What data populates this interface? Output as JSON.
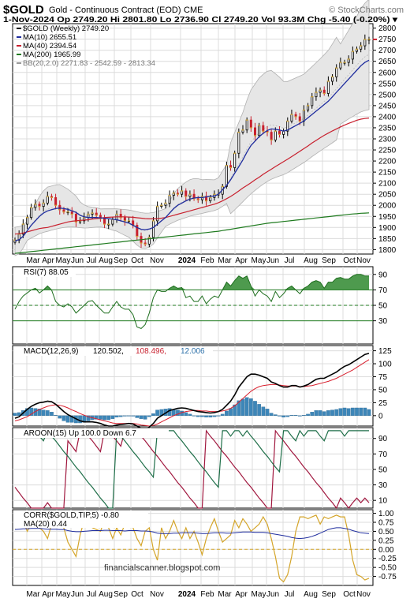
{
  "header": {
    "symbol": "$GOLD",
    "name": "Gold - Continuous Contract (EOD)",
    "exchange": "CME",
    "watermark": "© StockCharts.com",
    "quote_line": "1-Nov-2024   Op 2749.20   Hi 2801.80   Lo 2736.90   Cl 2749.20   Vol 93.3M   Chg -5.40 (-0.20%) ▾"
  },
  "footer": {
    "credit": "financialscanner.blogspot.com"
  },
  "chart_data": [
    {
      "type": "candlestick",
      "panel": "price",
      "legend": [
        {
          "label": "$GOLD (Weekly) 2749.20",
          "color": "#000000"
        },
        {
          "label": "MA(10) 2655.51",
          "color": "#1f2d9e"
        },
        {
          "label": "MA(40) 2394.54",
          "color": "#c8202e"
        },
        {
          "label": "MA(200) 1965.99",
          "color": "#1e7a1e"
        },
        {
          "label": "BB(20,2.0) 2271.83 - 2542.59 - 2813.34",
          "color": "#999999"
        }
      ],
      "yticks": [
        1800,
        1850,
        1900,
        1950,
        2000,
        2050,
        2100,
        2150,
        2200,
        2250,
        2300,
        2350,
        2400,
        2450,
        2500,
        2550,
        2600,
        2650,
        2700,
        2750,
        2800
      ],
      "ylim": [
        1780,
        2820
      ],
      "x_labels": [
        "Mar",
        "Apr",
        "May",
        "Jun",
        "Jul",
        "Aug",
        "Sep",
        "Oct",
        "Nov",
        "2024",
        "Feb",
        "Mar",
        "Apr",
        "May",
        "Jun",
        "Jul",
        "Aug",
        "Sep",
        "Oct",
        "Nov"
      ],
      "weeks": 88,
      "close": [
        1843,
        1870,
        1915,
        1945,
        1990,
        2005,
        1995,
        2010,
        2040,
        2035,
        2000,
        1980,
        1970,
        1970,
        1960,
        1925,
        1930,
        1945,
        1960,
        1965,
        1955,
        1940,
        1915,
        1915,
        1935,
        1960,
        1945,
        1930,
        1930,
        1910,
        1860,
        1830,
        1825,
        1855,
        1930,
        1995,
        2000,
        2010,
        2045,
        2055,
        2050,
        2065,
        2040,
        2050,
        2030,
        2025,
        2040,
        2020,
        2035,
        2050,
        2050,
        2085,
        2180,
        2170,
        2235,
        2330,
        2340,
        2385,
        2350,
        2315,
        2360,
        2335,
        2330,
        2295,
        2335,
        2320,
        2335,
        2380,
        2410,
        2400,
        2380,
        2430,
        2450,
        2490,
        2510,
        2520,
        2505,
        2560,
        2580,
        2620,
        2645,
        2645,
        2660,
        2695,
        2705,
        2720,
        2749,
        2749
      ],
      "ma10": [
        1840,
        1845,
        1860,
        1885,
        1910,
        1930,
        1950,
        1965,
        1975,
        1980,
        1985,
        1988,
        1985,
        1982,
        1975,
        1968,
        1955,
        1948,
        1945,
        1945,
        1945,
        1943,
        1942,
        1940,
        1937,
        1935,
        1930,
        1925,
        1920,
        1910,
        1900,
        1892,
        1890,
        1893,
        1900,
        1915,
        1930,
        1945,
        1965,
        1985,
        2000,
        2010,
        2020,
        2028,
        2033,
        2035,
        2035,
        2038,
        2040,
        2042,
        2050,
        2070,
        2090,
        2115,
        2145,
        2175,
        2205,
        2240,
        2270,
        2290,
        2310,
        2325,
        2338,
        2345,
        2343,
        2340,
        2335,
        2340,
        2350,
        2360,
        2370,
        2380,
        2395,
        2410,
        2425,
        2440,
        2455,
        2470,
        2490,
        2510,
        2530,
        2550,
        2570,
        2590,
        2610,
        2630,
        2645,
        2655
      ],
      "ma40": [
        1870,
        1872,
        1875,
        1880,
        1885,
        1890,
        1895,
        1898,
        1900,
        1905,
        1910,
        1915,
        1920,
        1925,
        1928,
        1930,
        1932,
        1933,
        1935,
        1938,
        1940,
        1942,
        1945,
        1946,
        1947,
        1948,
        1948,
        1948,
        1947,
        1946,
        1944,
        1942,
        1940,
        1939,
        1939,
        1940,
        1942,
        1945,
        1950,
        1955,
        1960,
        1965,
        1970,
        1975,
        1980,
        1985,
        1990,
        1995,
        2000,
        2005,
        2012,
        2020,
        2030,
        2040,
        2052,
        2065,
        2078,
        2090,
        2102,
        2115,
        2127,
        2140,
        2152,
        2163,
        2175,
        2186,
        2197,
        2208,
        2220,
        2232,
        2244,
        2256,
        2268,
        2281,
        2293,
        2305,
        2316,
        2326,
        2336,
        2345,
        2354,
        2362,
        2370,
        2377,
        2384,
        2389,
        2392,
        2394
      ],
      "ma200": [
        1783,
        1785,
        1787,
        1789,
        1791,
        1793,
        1795,
        1797,
        1799,
        1801,
        1803,
        1805,
        1807,
        1809,
        1811,
        1813,
        1815,
        1817,
        1819,
        1821,
        1823,
        1825,
        1827,
        1829,
        1831,
        1833,
        1835,
        1837,
        1839,
        1841,
        1843,
        1845,
        1847,
        1849,
        1851,
        1853,
        1855,
        1857,
        1859,
        1861,
        1863,
        1865,
        1867,
        1869,
        1871,
        1873,
        1875,
        1877,
        1879,
        1881,
        1883,
        1886,
        1889,
        1892,
        1895,
        1898,
        1901,
        1904,
        1907,
        1910,
        1913,
        1916,
        1919,
        1921,
        1923,
        1925,
        1927,
        1929,
        1931,
        1933,
        1935,
        1937,
        1939,
        1941,
        1943,
        1945,
        1947,
        1949,
        1951,
        1953,
        1955,
        1957,
        1959,
        1961,
        1962,
        1964,
        1965,
        1966
      ]
    },
    {
      "type": "area",
      "panel": "rsi",
      "label": "RSI(7) 88.05",
      "yticks": [
        30,
        50,
        70,
        90
      ],
      "ylim": [
        0,
        100
      ],
      "values": [
        45,
        55,
        62,
        66,
        70,
        72,
        66,
        70,
        75,
        70,
        55,
        50,
        48,
        52,
        48,
        40,
        45,
        50,
        55,
        56,
        50,
        45,
        40,
        40,
        48,
        55,
        48,
        45,
        45,
        38,
        22,
        20,
        25,
        40,
        60,
        70,
        68,
        68,
        72,
        75,
        72,
        73,
        60,
        62,
        55,
        55,
        62,
        52,
        58,
        62,
        60,
        70,
        80,
        75,
        82,
        88,
        85,
        88,
        75,
        62,
        70,
        65,
        62,
        55,
        68,
        60,
        65,
        72,
        75,
        70,
        65,
        72,
        75,
        80,
        82,
        80,
        72,
        80,
        80,
        85,
        86,
        84,
        84,
        88,
        90,
        90,
        88,
        88
      ]
    },
    {
      "type": "line",
      "panel": "macd",
      "label": "MACD(12,26,9) 120.502, 108.496, 12.006",
      "label_parts": [
        "MACD(12,26,9)",
        "120.502,",
        "108.496,",
        "12.006"
      ],
      "yticks": [
        0,
        25,
        50,
        75,
        100,
        125
      ],
      "ylim": [
        -20,
        135
      ],
      "macd": [
        -5,
        -2,
        5,
        12,
        18,
        22,
        25,
        26,
        28,
        27,
        22,
        15,
        8,
        2,
        -2,
        -6,
        -10,
        -12,
        -12,
        -12,
        -13,
        -15,
        -18,
        -20,
        -20,
        -18,
        -17,
        -16,
        -15,
        -16,
        -20,
        -24,
        -26,
        -22,
        -15,
        -5,
        0,
        5,
        10,
        12,
        14,
        15,
        14,
        12,
        10,
        8,
        7,
        6,
        5,
        6,
        8,
        12,
        20,
        28,
        40,
        55,
        65,
        75,
        80,
        80,
        78,
        75,
        72,
        65,
        62,
        58,
        55,
        55,
        58,
        58,
        55,
        57,
        60,
        65,
        70,
        72,
        72,
        76,
        80,
        84,
        90,
        95,
        98,
        103,
        108,
        113,
        118,
        120
      ],
      "signal": [
        -10,
        -8,
        -5,
        -2,
        3,
        8,
        12,
        15,
        18,
        20,
        21,
        20,
        18,
        15,
        11,
        8,
        4,
        1,
        -2,
        -4,
        -6,
        -8,
        -10,
        -12,
        -14,
        -15,
        -15,
        -15,
        -15,
        -15,
        -16,
        -18,
        -19,
        -20,
        -19,
        -16,
        -12,
        -8,
        -4,
        0,
        3,
        6,
        8,
        9,
        10,
        10,
        9,
        9,
        8,
        8,
        8,
        9,
        11,
        14,
        19,
        26,
        33,
        40,
        47,
        52,
        56,
        58,
        59,
        60,
        60,
        59,
        58,
        57,
        57,
        57,
        56,
        56,
        57,
        58,
        60,
        62,
        64,
        66,
        69,
        72,
        76,
        80,
        84,
        88,
        93,
        98,
        103,
        108
      ],
      "histogram": [
        5,
        6,
        10,
        14,
        15,
        14,
        13,
        11,
        10,
        7,
        1,
        -5,
        -10,
        -13,
        -13,
        -14,
        -14,
        -13,
        -10,
        -8,
        -7,
        -7,
        -8,
        -8,
        -6,
        -3,
        -2,
        -1,
        0,
        -1,
        -4,
        -6,
        -7,
        -2,
        4,
        11,
        12,
        13,
        14,
        12,
        11,
        9,
        6,
        3,
        0,
        -2,
        -2,
        -3,
        -3,
        -2,
        0,
        3,
        9,
        14,
        21,
        29,
        32,
        35,
        33,
        28,
        22,
        17,
        13,
        5,
        2,
        -1,
        -3,
        -2,
        1,
        1,
        -1,
        1,
        3,
        7,
        10,
        10,
        8,
        10,
        11,
        12,
        14,
        15,
        14,
        15,
        15,
        15,
        15,
        12
      ]
    },
    {
      "type": "line",
      "panel": "aroon",
      "label": "AROON(15) Up 100.0 Down 6.7",
      "yticks": [
        10,
        30,
        50,
        70,
        90
      ],
      "ylim": [
        0,
        104
      ],
      "up": [
        100,
        93,
        100,
        100,
        100,
        100,
        93,
        87,
        100,
        93,
        87,
        80,
        73,
        67,
        60,
        53,
        47,
        40,
        33,
        27,
        20,
        13,
        7,
        0,
        0,
        100,
        93,
        87,
        80,
        73,
        67,
        60,
        53,
        47,
        40,
        100,
        93,
        100,
        100,
        100,
        93,
        87,
        80,
        73,
        67,
        60,
        53,
        47,
        40,
        33,
        27,
        100,
        100,
        93,
        100,
        100,
        93,
        100,
        93,
        87,
        80,
        73,
        67,
        60,
        53,
        47,
        100,
        100,
        93,
        87,
        100,
        93,
        100,
        100,
        100,
        93,
        87,
        100,
        100,
        100,
        100,
        93,
        100,
        100,
        100,
        100,
        100,
        100
      ],
      "down": [
        27,
        20,
        13,
        7,
        0,
        0,
        0,
        0,
        7,
        0,
        0,
        0,
        0,
        87,
        80,
        73,
        100,
        100,
        93,
        87,
        80,
        73,
        100,
        100,
        93,
        87,
        80,
        100,
        100,
        100,
        100,
        93,
        87,
        80,
        73,
        67,
        60,
        53,
        47,
        40,
        33,
        27,
        20,
        13,
        7,
        0,
        0,
        100,
        93,
        87,
        80,
        73,
        67,
        60,
        53,
        47,
        40,
        33,
        27,
        20,
        13,
        7,
        0,
        0,
        100,
        93,
        87,
        80,
        73,
        67,
        60,
        53,
        47,
        40,
        33,
        27,
        20,
        13,
        7,
        0,
        13,
        7,
        0,
        7,
        13,
        7,
        13,
        7
      ]
    },
    {
      "type": "line",
      "panel": "corr",
      "label": "CORR($GOLD,TIP,5) -0.80",
      "ma_label": "MA(20) 0.44",
      "yticks": [
        -0.75,
        -0.5,
        -0.25,
        0.0,
        0.25,
        0.5,
        0.75,
        1.0
      ],
      "ytick_labels": [
        "-0.75",
        "-0.50",
        "-0.25",
        "0.00",
        "0.25",
        "0.50",
        "0.75",
        "1.00"
      ],
      "ylim": [
        -1.0,
        1.1
      ],
      "corr": [
        0.6,
        0.7,
        0.8,
        0.5,
        0.7,
        0.85,
        0.6,
        0.5,
        0.3,
        0.7,
        0.8,
        0.85,
        0.6,
        0.2,
        0.0,
        -0.2,
        0.4,
        0.8,
        0.7,
        0.6,
        0.55,
        0.5,
        0.8,
        0.6,
        0.3,
        0.6,
        0.4,
        0.7,
        0.8,
        0.6,
        0.3,
        0.1,
        0.5,
        0.6,
        0.0,
        -0.3,
        0.6,
        0.3,
        0.5,
        0.8,
        0.5,
        0.3,
        0.6,
        0.3,
        0.5,
        0.2,
        -0.15,
        0.3,
        0.6,
        0.85,
        0.5,
        0.2,
        0.3,
        0.4,
        0.8,
        0.6,
        0.85,
        0.7,
        0.5,
        0.6,
        0.7,
        0.9,
        0.7,
        0.3,
        -0.2,
        -0.8,
        -0.9,
        -0.7,
        -0.2,
        0.5,
        0.9,
        0.9,
        0.85,
        0.9,
        0.95,
        0.7,
        0.9,
        0.85,
        0.9,
        0.95,
        0.9,
        0.9,
        0.4,
        -0.3,
        -0.7,
        -0.75,
        -0.85,
        -0.8
      ],
      "ma20": [
        0.55,
        0.56,
        0.57,
        0.57,
        0.58,
        0.58,
        0.58,
        0.57,
        0.56,
        0.56,
        0.56,
        0.55,
        0.55,
        0.52,
        0.5,
        0.49,
        0.49,
        0.5,
        0.51,
        0.52,
        0.52,
        0.52,
        0.53,
        0.53,
        0.52,
        0.52,
        0.52,
        0.51,
        0.52,
        0.52,
        0.52,
        0.51,
        0.51,
        0.5,
        0.48,
        0.45,
        0.44,
        0.44,
        0.44,
        0.45,
        0.45,
        0.46,
        0.46,
        0.46,
        0.46,
        0.45,
        0.44,
        0.44,
        0.45,
        0.46,
        0.46,
        0.46,
        0.45,
        0.45,
        0.46,
        0.47,
        0.48,
        0.48,
        0.48,
        0.47,
        0.47,
        0.47,
        0.46,
        0.44,
        0.42,
        0.4,
        0.38,
        0.36,
        0.33,
        0.31,
        0.3,
        0.31,
        0.33,
        0.36,
        0.4,
        0.45,
        0.5,
        0.55,
        0.58,
        0.6,
        0.6,
        0.58,
        0.56,
        0.52,
        0.49,
        0.46,
        0.45,
        0.44
      ]
    }
  ]
}
